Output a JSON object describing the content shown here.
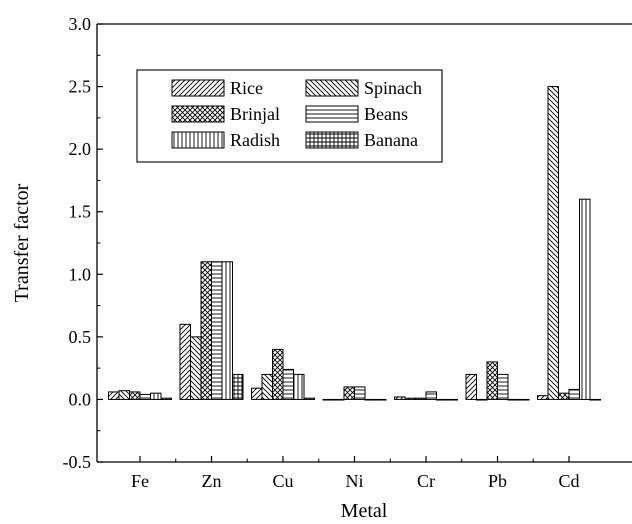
{
  "chart_data": {
    "type": "bar",
    "title": "",
    "xlabel": "Metal",
    "ylabel": "Transfer factor",
    "categories": [
      "Fe",
      "Zn",
      "Cu",
      "Ni",
      "Cr",
      "Pb",
      "Cd"
    ],
    "ylim": [
      -0.5,
      3.0
    ],
    "yticks": [
      "-0.5",
      "0.0",
      "0.5",
      "1.0",
      "1.5",
      "2.0",
      "2.5",
      "3.0"
    ],
    "ytick_values": [
      -0.5,
      0.0,
      0.5,
      1.0,
      1.5,
      2.0,
      2.5,
      3.0
    ],
    "grid": false,
    "legend_position": "top-left",
    "series": [
      {
        "name": "Rice",
        "pattern": "diag-right",
        "values": [
          0.06,
          0.6,
          0.09,
          0.0,
          0.02,
          0.2,
          0.03
        ]
      },
      {
        "name": "Spinach",
        "pattern": "diag-left",
        "values": [
          0.07,
          0.5,
          0.2,
          0.0,
          0.01,
          0.0,
          2.5
        ]
      },
      {
        "name": "Brinjal",
        "pattern": "crosshatch",
        "values": [
          0.06,
          1.1,
          0.4,
          0.1,
          0.01,
          0.3,
          0.05
        ]
      },
      {
        "name": "Beans",
        "pattern": "horizontal",
        "values": [
          0.04,
          1.1,
          0.24,
          0.1,
          0.06,
          0.2,
          0.08
        ]
      },
      {
        "name": "Radish",
        "pattern": "vertical",
        "values": [
          0.05,
          1.1,
          0.2,
          0.0,
          0.0,
          0.0,
          1.6
        ]
      },
      {
        "name": "Banana",
        "pattern": "grid",
        "values": [
          0.01,
          0.2,
          0.01,
          0.0,
          0.0,
          0.0,
          0.0
        ]
      }
    ]
  }
}
